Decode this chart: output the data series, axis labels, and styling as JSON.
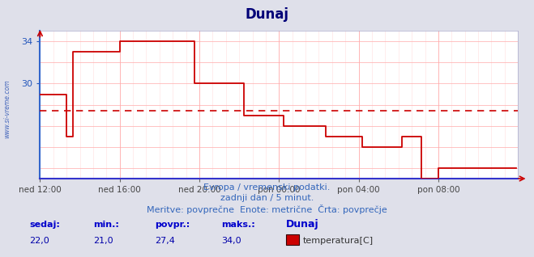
{
  "title": "Dunaj",
  "background_color": "#dfe0ea",
  "plot_bg_color": "#ffffff",
  "line_color": "#cc0000",
  "avg_line_color": "#cc0000",
  "avg_line_value": 27.4,
  "grid_color_major": "#ffaaaa",
  "grid_color_minor": "#ffdddd",
  "ylim_min": 21.0,
  "ylim_max": 35.0,
  "ytick_labels": [
    30,
    34
  ],
  "ytick_positions": [
    30,
    34
  ],
  "all_yticks": [
    22,
    24,
    26,
    28,
    30,
    32,
    34
  ],
  "x_tick_labels": [
    "ned 12:00",
    "ned 16:00",
    "ned 20:00",
    "pon 00:00",
    "pon 04:00",
    "pon 08:00"
  ],
  "x_tick_positions": [
    0,
    48,
    96,
    144,
    192,
    240
  ],
  "total_points": 288,
  "watermark": "www.si-vreme.com",
  "footer_line1": "Evropa / vremenski podatki.",
  "footer_line2": "zadnji dan / 5 minut.",
  "footer_line3": "Meritve: povprečne  Enote: metrične  Črta: povprečje",
  "label_sedaj": "sedaj:",
  "label_min": "min.:",
  "label_povpr": "povpr.:",
  "label_maks": "maks.:",
  "val_sedaj": "22,0",
  "val_min": "21,0",
  "val_povpr": "27,4",
  "val_maks": "34,0",
  "legend_location": "Dunaj",
  "legend_series": "temperatura[C]",
  "temperature_data": [
    29,
    29,
    29,
    29,
    29,
    29,
    29,
    29,
    29,
    29,
    29,
    29,
    29,
    29,
    29,
    29,
    25,
    25,
    25,
    25,
    33,
    33,
    33,
    33,
    33,
    33,
    33,
    33,
    33,
    33,
    33,
    33,
    33,
    33,
    33,
    33,
    33,
    33,
    33,
    33,
    33,
    33,
    33,
    33,
    33,
    33,
    33,
    33,
    34,
    34,
    34,
    34,
    34,
    34,
    34,
    34,
    34,
    34,
    34,
    34,
    34,
    34,
    34,
    34,
    34,
    34,
    34,
    34,
    34,
    34,
    34,
    34,
    34,
    34,
    34,
    34,
    34,
    34,
    34,
    34,
    34,
    34,
    34,
    34,
    34,
    34,
    34,
    34,
    34,
    34,
    34,
    34,
    34,
    30,
    30,
    30,
    30,
    30,
    30,
    30,
    30,
    30,
    30,
    30,
    30,
    30,
    30,
    30,
    30,
    30,
    30,
    30,
    30,
    30,
    30,
    30,
    30,
    30,
    30,
    30,
    30,
    30,
    30,
    27,
    27,
    27,
    27,
    27,
    27,
    27,
    27,
    27,
    27,
    27,
    27,
    27,
    27,
    27,
    27,
    27,
    27,
    27,
    27,
    27,
    27,
    27,
    27,
    26,
    26,
    26,
    26,
    26,
    26,
    26,
    26,
    26,
    26,
    26,
    26,
    26,
    26,
    26,
    26,
    26,
    26,
    26,
    26,
    26,
    26,
    26,
    26,
    26,
    25,
    25,
    25,
    25,
    25,
    25,
    25,
    25,
    25,
    25,
    25,
    25,
    25,
    25,
    25,
    25,
    25,
    25,
    25,
    25,
    25,
    25,
    24,
    24,
    24,
    24,
    24,
    24,
    24,
    24,
    24,
    24,
    24,
    24,
    24,
    24,
    24,
    24,
    24,
    24,
    24,
    24,
    24,
    24,
    24,
    24,
    25,
    25,
    25,
    25,
    25,
    25,
    25,
    25,
    25,
    25,
    25,
    25,
    21,
    21,
    21,
    21,
    21,
    21,
    21,
    21,
    21,
    21,
    22,
    22,
    22,
    22,
    22,
    22,
    22,
    22,
    22,
    22,
    22,
    22,
    22,
    22,
    22,
    22,
    22,
    22,
    22,
    22,
    22,
    22,
    22,
    22,
    22,
    22,
    22,
    22,
    22,
    22,
    22,
    22,
    22,
    22,
    22,
    22,
    22,
    22,
    22,
    22,
    22,
    22,
    22,
    22,
    22,
    22,
    22,
    22
  ]
}
